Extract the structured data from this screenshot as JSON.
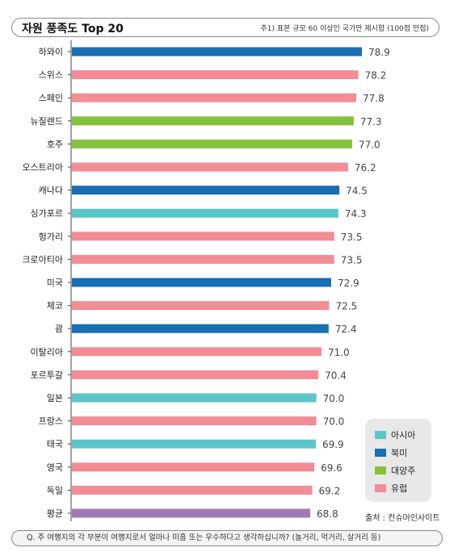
{
  "header": {
    "title": "자원 풍족도 Top 20",
    "note": "주1) 표본 규모 60 이상인 국가만 제시함 (100점 만점)"
  },
  "chart_data": {
    "type": "bar",
    "orientation": "horizontal",
    "title": "자원 풍족도 Top 20",
    "xlabel": "",
    "ylabel": "",
    "xlim": [
      0,
      100
    ],
    "categories": [
      "하와이",
      "스위스",
      "스페인",
      "뉴질랜드",
      "호주",
      "오스트리아",
      "캐나다",
      "싱가포르",
      "헝가리",
      "크로아티아",
      "미국",
      "체코",
      "괌",
      "이탈리아",
      "포르투갈",
      "일본",
      "프랑스",
      "태국",
      "영국",
      "독일",
      "평균"
    ],
    "values": [
      78.9,
      78.2,
      77.8,
      77.3,
      77.0,
      76.2,
      74.5,
      74.3,
      73.5,
      73.5,
      72.9,
      72.5,
      72.4,
      71.0,
      70.4,
      70.0,
      70.0,
      69.9,
      69.6,
      69.2,
      68.8
    ],
    "value_labels": [
      "78.9",
      "78.2",
      "77.8",
      "77.3",
      "77.0",
      "76.2",
      "74.5",
      "74.3",
      "73.5",
      "73.5",
      "72.9",
      "72.5",
      "72.4",
      "71.0",
      "70.4",
      "70.0",
      "70.0",
      "69.9",
      "69.6",
      "69.2",
      "68.8"
    ],
    "groups": [
      "북미",
      "유럽",
      "유럽",
      "대양주",
      "대양주",
      "유럽",
      "북미",
      "아시아",
      "유럽",
      "유럽",
      "북미",
      "유럽",
      "북미",
      "유럽",
      "유럽",
      "아시아",
      "유럽",
      "아시아",
      "유럽",
      "유럽",
      "평균"
    ],
    "legend": [
      {
        "name": "아시아",
        "color": "#5cc5c8"
      },
      {
        "name": "북미",
        "color": "#1a6eb5"
      },
      {
        "name": "대양주",
        "color": "#86c23b"
      },
      {
        "name": "유럽",
        "color": "#f28d96"
      }
    ],
    "legend_position": "bottom-right",
    "average_color": "#9f7bb4",
    "grid": false
  },
  "source": "출처 : 컨슈머인사이트",
  "question": "Q. 주 여행지의 각 부분이 여행지로서 얼마나 미흡 또는 우수하다고 생각하십니까? (놀거리, 먹거리, 살거리 등)"
}
